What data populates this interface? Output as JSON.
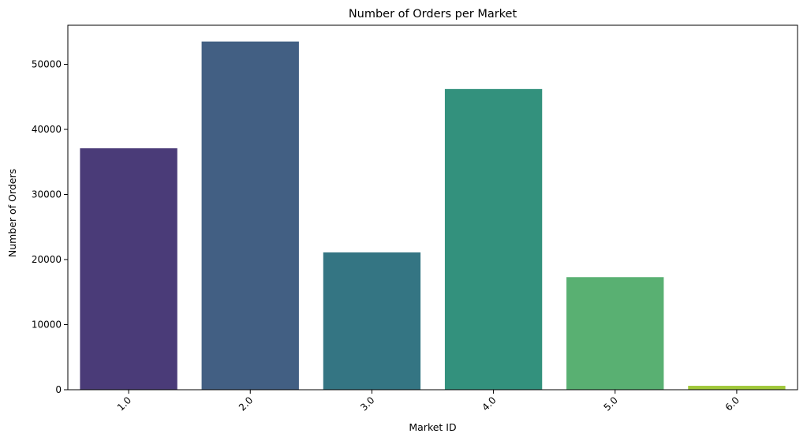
{
  "chart_data": {
    "type": "bar",
    "title": "Number of Orders per Market",
    "xlabel": "Market ID",
    "ylabel": "Number of Orders",
    "categories": [
      "1.0",
      "2.0",
      "3.0",
      "4.0",
      "5.0",
      "6.0"
    ],
    "values": [
      37100,
      53500,
      21100,
      46200,
      17300,
      600
    ],
    "colors": [
      "#4a3b78",
      "#425f83",
      "#347583",
      "#33917d",
      "#59b072",
      "#a0c83a"
    ],
    "ylim": [
      0,
      56000
    ],
    "yticks": [
      0,
      10000,
      20000,
      30000,
      40000,
      50000
    ],
    "x_tick_rotation": 45,
    "grid": false,
    "legend": false
  }
}
